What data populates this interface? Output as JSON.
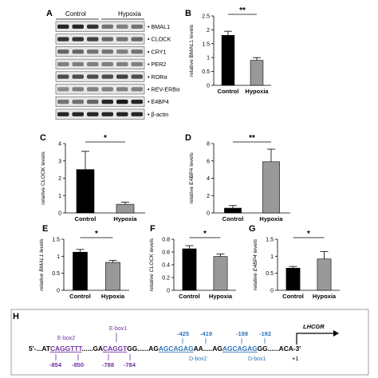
{
  "panel_letters": {
    "A": "A",
    "B": "B",
    "C": "C",
    "D": "D",
    "E": "E",
    "F": "F",
    "G": "G",
    "H": "H"
  },
  "blot": {
    "groups": [
      "Control",
      "Hypoxia"
    ],
    "bands": [
      "BMAL1",
      "CLOCK",
      "CRY1",
      "PER2",
      "RORα",
      "REV-ERBα",
      "E4BP4",
      "β-actin"
    ]
  },
  "chart_data": [
    {
      "panel": "B",
      "type": "bar",
      "categories": [
        "Control",
        "Hypoxia"
      ],
      "values": [
        1.8,
        0.9
      ],
      "errors": [
        0.15,
        0.1
      ],
      "colors": [
        "#000000",
        "#999999"
      ],
      "ylabel": "relative BMAL1 levels",
      "ylim": [
        0,
        2.5
      ],
      "yticks": [
        "0",
        "0.5",
        "1",
        "1.5",
        "2",
        "2.5"
      ],
      "significance": "**",
      "grid": false
    },
    {
      "panel": "C",
      "type": "bar",
      "categories": [
        "Control",
        "Hypoxia"
      ],
      "values": [
        2.5,
        0.5
      ],
      "errors": [
        1.05,
        0.12
      ],
      "colors": [
        "#000000",
        "#999999"
      ],
      "ylabel": "relative CLOCK levels",
      "ylim": [
        0,
        4
      ],
      "yticks": [
        "0",
        "1",
        "2",
        "3",
        "4"
      ],
      "significance": "*",
      "grid": false
    },
    {
      "panel": "D",
      "type": "bar",
      "categories": [
        "Control",
        "Hypoxia"
      ],
      "values": [
        0.55,
        5.9
      ],
      "errors": [
        0.3,
        1.45
      ],
      "colors": [
        "#000000",
        "#999999"
      ],
      "ylabel": "relative E4BP4 levels",
      "ylim": [
        0,
        8
      ],
      "yticks": [
        "0",
        "2",
        "4",
        "6",
        "8"
      ],
      "significance": "**",
      "grid": false
    },
    {
      "panel": "E",
      "type": "bar",
      "categories": [
        "Control",
        "Hypoxia"
      ],
      "values": [
        1.12,
        0.82
      ],
      "errors": [
        0.08,
        0.06
      ],
      "colors": [
        "#000000",
        "#999999"
      ],
      "ylabel": "relative BMAL1 levels",
      "ylim": [
        0,
        1.5
      ],
      "yticks": [
        "0",
        "0.5",
        "1",
        "1.5"
      ],
      "significance": "*",
      "grid": false
    },
    {
      "panel": "F",
      "type": "bar",
      "categories": [
        "Control",
        "Hypoxia"
      ],
      "values": [
        0.65,
        0.53
      ],
      "errors": [
        0.05,
        0.04
      ],
      "colors": [
        "#000000",
        "#999999"
      ],
      "ylabel": "relative CLOCK levels",
      "ylim": [
        0,
        0.8
      ],
      "yticks": [
        "0",
        "0.2",
        "0.4",
        "0.6",
        "0.8"
      ],
      "significance": "*",
      "grid": false
    },
    {
      "panel": "G",
      "type": "bar",
      "categories": [
        "Control",
        "Hypoxia"
      ],
      "values": [
        0.65,
        0.92
      ],
      "errors": [
        0.05,
        0.22
      ],
      "colors": [
        "#000000",
        "#999999"
      ],
      "ylabel": "relative E4BP4 levels",
      "ylim": [
        0,
        1.5
      ],
      "yticks": [
        "0",
        "0.5",
        "1",
        "1.5"
      ],
      "significance": "*",
      "grid": false
    }
  ],
  "promoter": {
    "segments": [
      {
        "text": "5'-...AT",
        "color": "#000000"
      },
      {
        "text": "CAGGTTT",
        "color": "#7030a0"
      },
      {
        "text": "......GA",
        "color": "#000000"
      },
      {
        "text": "CAGGT",
        "color": "#7030a0"
      },
      {
        "text": "GG......AG",
        "color": "#000000"
      },
      {
        "text": "AGCAGAG",
        "color": "#2e75b6"
      },
      {
        "text": "AA.....AG",
        "color": "#000000"
      },
      {
        "text": "AGCAGAG",
        "color": "#2e75b6"
      },
      {
        "text": "GG......ACA-3'",
        "color": "#000000"
      }
    ],
    "ebox2_label": "E-box2",
    "ebox1_label": "E-box1",
    "dbox2_label": "D-box2",
    "dbox1_label": "D-box1",
    "pos_854": "-854",
    "pos_850": "-850",
    "pos_788": "-788",
    "pos_784": "-784",
    "pos_425": "-425",
    "pos_419": "-419",
    "pos_198": "-198",
    "pos_192": "-192",
    "gene": "LHCGR",
    "tss": "+1",
    "colors": {
      "ebox": "#7030a0",
      "dbox": "#2e75b6"
    }
  }
}
